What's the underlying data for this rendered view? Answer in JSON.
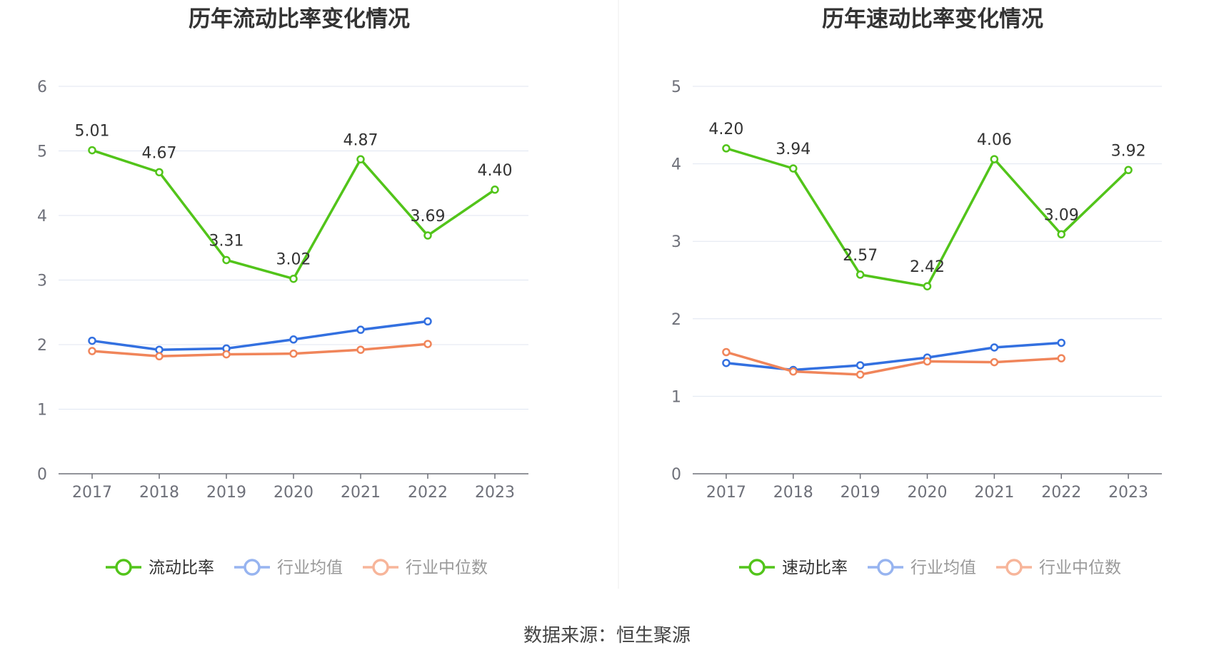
{
  "chart_data": [
    {
      "type": "line",
      "title": "历年流动比率变化情况",
      "categories": [
        "2017",
        "2018",
        "2019",
        "2020",
        "2021",
        "2022",
        "2023"
      ],
      "ylim": [
        0,
        6
      ],
      "yticks": [
        0,
        1,
        2,
        3,
        4,
        5,
        6
      ],
      "series": [
        {
          "name": "流动比率",
          "color": "#52c41a",
          "labels": true,
          "values": [
            5.01,
            4.67,
            3.31,
            3.02,
            4.87,
            3.69,
            4.4
          ],
          "label_text": [
            "5.01",
            "4.67",
            "3.31",
            "3.02",
            "4.87",
            "3.69",
            "4.40"
          ]
        },
        {
          "name": "行业均值",
          "color": "#3370e0",
          "labels": false,
          "values": [
            2.06,
            1.92,
            1.94,
            2.08,
            2.23,
            2.36,
            null
          ]
        },
        {
          "name": "行业中位数",
          "color": "#f0855a",
          "labels": false,
          "values": [
            1.9,
            1.82,
            1.85,
            1.86,
            1.92,
            2.01,
            null
          ]
        }
      ]
    },
    {
      "type": "line",
      "title": "历年速动比率变化情况",
      "categories": [
        "2017",
        "2018",
        "2019",
        "2020",
        "2021",
        "2022",
        "2023"
      ],
      "ylim": [
        0,
        5
      ],
      "yticks": [
        0,
        1,
        2,
        3,
        4,
        5
      ],
      "series": [
        {
          "name": "速动比率",
          "color": "#52c41a",
          "labels": true,
          "values": [
            4.2,
            3.94,
            2.57,
            2.42,
            4.06,
            3.09,
            3.92
          ],
          "label_text": [
            "4.20",
            "3.94",
            "2.57",
            "2.42",
            "4.06",
            "3.09",
            "3.92"
          ]
        },
        {
          "name": "行业均值",
          "color": "#3370e0",
          "labels": false,
          "values": [
            1.43,
            1.34,
            1.4,
            1.5,
            1.63,
            1.69,
            null
          ]
        },
        {
          "name": "行业中位数",
          "color": "#f0855a",
          "labels": false,
          "values": [
            1.57,
            1.32,
            1.28,
            1.45,
            1.44,
            1.49,
            null
          ]
        }
      ]
    }
  ],
  "legend_colors": {
    "active": "#52c41a",
    "mean": "#97b4f0",
    "median": "#f7b59a",
    "active_text": "#333333",
    "inactive_text": "#999999"
  },
  "source": "数据来源：恒生聚源"
}
